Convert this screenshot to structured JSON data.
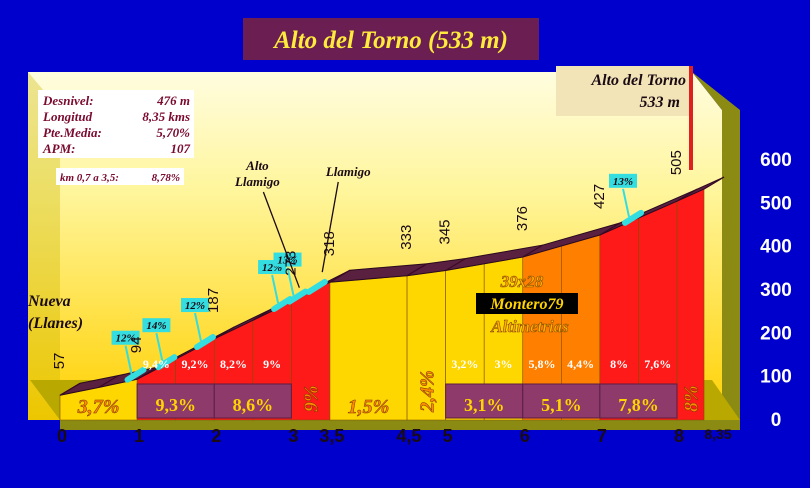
{
  "chart_data": {
    "type": "area",
    "title": "Alto del Torno (533 m)",
    "summit_label": {
      "name": "Alto del Torno",
      "altitude": "533 m"
    },
    "stats": [
      {
        "label": "Desnivel:",
        "value": "476 m"
      },
      {
        "label": "Longitud",
        "value": "8,35 kms"
      },
      {
        "label": "Pte.Media:",
        "value": "5,70%"
      },
      {
        "label": "APM:",
        "value": "107"
      }
    ],
    "stretch_note": {
      "label": "km 0,7 a 3,5:",
      "value": "8,78%"
    },
    "start_label": [
      "Nueva",
      "(Llanes)"
    ],
    "credit": {
      "dims": "39x28",
      "author": "Montero79",
      "brand": "Altimetrias"
    },
    "ylim": [
      0,
      600
    ],
    "y_ticks": [
      "0",
      "100",
      "200",
      "300",
      "400",
      "500",
      "600"
    ],
    "xlim": [
      0,
      8.35
    ],
    "x_ticks": [
      {
        "km": 0,
        "label": "0"
      },
      {
        "km": 1,
        "label": "1"
      },
      {
        "km": 2,
        "label": "2"
      },
      {
        "km": 3,
        "label": "3"
      },
      {
        "km": 3.5,
        "label": "3,5"
      },
      {
        "km": 4.5,
        "label": "4,5"
      },
      {
        "km": 5,
        "label": "5"
      },
      {
        "km": 6,
        "label": "6"
      },
      {
        "km": 7,
        "label": "7"
      },
      {
        "km": 8,
        "label": "8"
      },
      {
        "km": 8.35,
        "label": "8,35"
      }
    ],
    "profile": [
      {
        "km": 0,
        "alt": 57
      },
      {
        "km": 0.5,
        "alt": 75
      },
      {
        "km": 1,
        "alt": 94
      },
      {
        "km": 2,
        "alt": 187
      },
      {
        "km": 2.5,
        "alt": 230
      },
      {
        "km": 3,
        "alt": 273
      },
      {
        "km": 3.5,
        "alt": 318
      },
      {
        "km": 4.5,
        "alt": 333
      },
      {
        "km": 5,
        "alt": 345
      },
      {
        "km": 6,
        "alt": 376
      },
      {
        "km": 7,
        "alt": 427
      },
      {
        "km": 8,
        "alt": 505
      },
      {
        "km": 8.35,
        "alt": 533
      }
    ],
    "altitude_labels": [
      {
        "km": 0,
        "label": "57"
      },
      {
        "km": 1,
        "label": "94"
      },
      {
        "km": 2,
        "label": "187"
      },
      {
        "km": 3,
        "label": "273"
      },
      {
        "km": 3.5,
        "label": "318"
      },
      {
        "km": 4.5,
        "label": "333"
      },
      {
        "km": 5,
        "label": "345"
      },
      {
        "km": 6,
        "label": "376"
      },
      {
        "km": 7,
        "label": "427"
      },
      {
        "km": 8,
        "label": "505"
      }
    ],
    "segments": [
      {
        "from": 0,
        "to": 1,
        "gradient": "3,7%",
        "color": "#ffd700"
      },
      {
        "from": 1,
        "to": 1.5,
        "gradient": "9,4%",
        "color": "#ff1a1a"
      },
      {
        "from": 1.5,
        "to": 2,
        "gradient": "9,2%",
        "color": "#ff1a1a"
      },
      {
        "from": 2,
        "to": 2.5,
        "gradient": "8,2%",
        "color": "#ff1a1a"
      },
      {
        "from": 2.5,
        "to": 3,
        "gradient": "9%",
        "color": "#ff1a1a"
      },
      {
        "from": 3,
        "to": 3.5,
        "gradient": "9%",
        "color": "#ff1a1a"
      },
      {
        "from": 3.5,
        "to": 4.5,
        "gradient": "1,5%",
        "color": "#ffd700"
      },
      {
        "from": 4.5,
        "to": 5,
        "gradient": "2,4%",
        "color": "#ffd700"
      },
      {
        "from": 5,
        "to": 5.5,
        "gradient": "3,2%",
        "color": "#ffd700"
      },
      {
        "from": 5.5,
        "to": 6,
        "gradient": "3%",
        "color": "#ffd700"
      },
      {
        "from": 6,
        "to": 6.5,
        "gradient": "5,8%",
        "color": "#ff7f00"
      },
      {
        "from": 6.5,
        "to": 7,
        "gradient": "4,4%",
        "color": "#ff7f00"
      },
      {
        "from": 7,
        "to": 7.5,
        "gradient": "8%",
        "color": "#ff1a1a"
      },
      {
        "from": 7.5,
        "to": 8,
        "gradient": "7,6%",
        "color": "#ff1a1a"
      },
      {
        "from": 8,
        "to": 8.35,
        "gradient": "8%",
        "color": "#ff1a1a"
      }
    ],
    "km_averages": [
      {
        "from": 1,
        "to": 2,
        "label": "9,3%"
      },
      {
        "from": 2,
        "to": 3,
        "label": "8,6%"
      },
      {
        "from": 5,
        "to": 6,
        "label": "3,1%"
      },
      {
        "from": 6,
        "to": 7,
        "label": "5,1%"
      },
      {
        "from": 7,
        "to": 8,
        "label": "7,8%"
      }
    ],
    "ramps": [
      {
        "km": 0.85,
        "label": "12%"
      },
      {
        "km": 1.25,
        "label": "14%"
      },
      {
        "km": 1.75,
        "label": "12%"
      },
      {
        "km": 2.75,
        "label": "12%"
      },
      {
        "km": 2.95,
        "label": "13%"
      },
      {
        "km": 3.2,
        "label": ""
      },
      {
        "km": 7.3,
        "label": "13%"
      }
    ],
    "landmarks": [
      {
        "km": 3,
        "label": [
          "Alto",
          "Llamigo"
        ]
      },
      {
        "km": 3.4,
        "label": [
          "Llamigo"
        ]
      }
    ],
    "colors": {
      "background": "#0000cc",
      "wall": "#8b8b14",
      "title_box": "#6b1e52",
      "title_text": "#ffeb3b",
      "road": "#5a2040",
      "ramp": "#33dde0",
      "summit_line": "#e02020"
    }
  }
}
